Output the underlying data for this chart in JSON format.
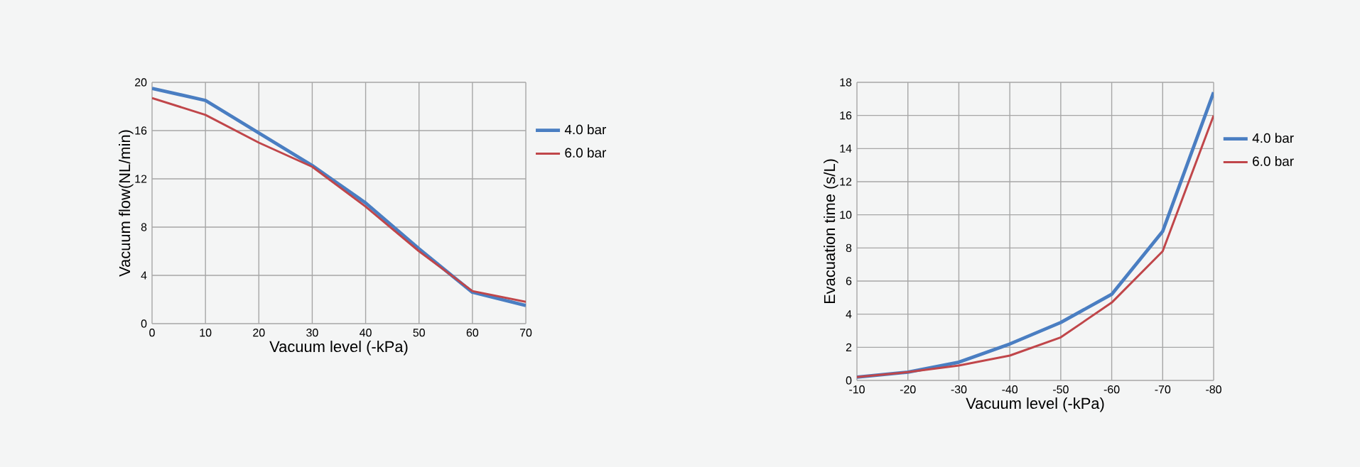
{
  "chart_data": [
    {
      "type": "line",
      "xlabel": "Vacuum level (-kPa)",
      "ylabel": "Vacuum flow(NL/min)",
      "x": [
        0,
        10,
        20,
        30,
        40,
        50,
        60,
        70
      ],
      "xlim": [
        0,
        70
      ],
      "xticks": [
        0,
        10,
        20,
        30,
        40,
        50,
        60,
        70
      ],
      "ylim": [
        0,
        20
      ],
      "yticks": [
        0,
        4,
        8,
        12,
        16,
        20
      ],
      "grid": true,
      "legend": "right",
      "marker": "none",
      "series": [
        {
          "name": "4.0 bar",
          "color": "#4a7ec2",
          "values": [
            19.5,
            18.5,
            15.8,
            13.1,
            10.0,
            6.2,
            2.6,
            1.5
          ]
        },
        {
          "name": "6.0 bar",
          "color": "#c0464a",
          "values": [
            18.7,
            17.3,
            15.0,
            13.0,
            9.7,
            6.0,
            2.7,
            1.8
          ]
        }
      ]
    },
    {
      "type": "line",
      "xlabel": "Vacuum level (-kPa)",
      "ylabel": "Evacuation time (s/L)",
      "x": [
        -10,
        -20,
        -30,
        -40,
        -50,
        -60,
        -70,
        -80
      ],
      "xlim": [
        -10,
        -80
      ],
      "xticks": [
        -10,
        -20,
        -30,
        -40,
        -50,
        -60,
        -70,
        -80
      ],
      "ylim": [
        0,
        18
      ],
      "yticks": [
        0,
        2,
        4,
        6,
        8,
        10,
        12,
        14,
        16,
        18
      ],
      "grid": true,
      "legend": "right",
      "marker": "none",
      "series": [
        {
          "name": "4.0 bar",
          "color": "#4a7ec2",
          "values": [
            0.2,
            0.5,
            1.1,
            2.2,
            3.5,
            5.2,
            9.0,
            17.4
          ]
        },
        {
          "name": "6.0 bar",
          "color": "#c0464a",
          "values": [
            0.2,
            0.5,
            0.9,
            1.5,
            2.6,
            4.7,
            7.8,
            16.0
          ]
        }
      ]
    }
  ]
}
